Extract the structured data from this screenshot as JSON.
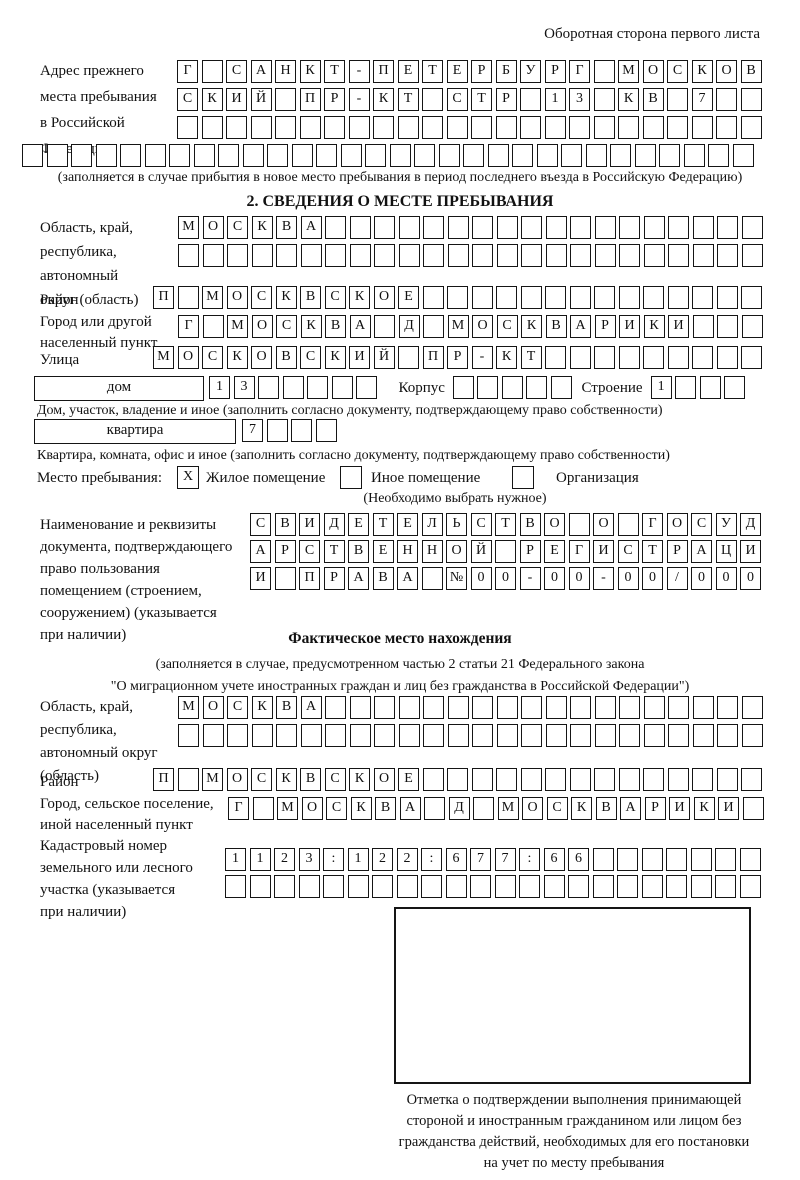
{
  "header": {
    "back_side_note": "Оборотная сторона первого листа"
  },
  "previous_address": {
    "label_lines": [
      "Адрес прежнего",
      "места пребывания",
      "в Российской",
      "Федерации"
    ],
    "rows": [
      {
        "text": "Г САНКТ-ПЕТЕРБУРГ МОСКОВ",
        "count": 24
      },
      {
        "text": "СКИЙ ПР-КТ СТР 13 КВ 7",
        "count": 24
      },
      {
        "text": "",
        "count": 24
      },
      {
        "text": "",
        "count": 30
      }
    ],
    "note": "(заполняется в случае прибытия в новое место пребывания в период последнего въезда в Российскую Федерацию)"
  },
  "section2": {
    "title": "2. СВЕДЕНИЯ О МЕСТЕ ПРЕБЫВАНИЯ",
    "region": {
      "label_lines": [
        "Область, край,",
        "республика,",
        "автономный",
        "округ (область)"
      ],
      "rows": [
        {
          "text": "МОСКВА",
          "count": 24
        },
        {
          "text": "",
          "count": 24
        }
      ]
    },
    "district": {
      "label": "Район",
      "row": {
        "text": "П МОСКВСКОЕ",
        "count": 25
      }
    },
    "city": {
      "label_lines": [
        "Город или другой",
        "населенный пункт"
      ],
      "row": {
        "text": "Г МОСКВА Д МОСКВАРИКИ",
        "count": 24
      }
    },
    "street": {
      "label": "Улица",
      "row": {
        "text": "МОСКОВСКИЙ ПР-КТ",
        "count": 25
      }
    },
    "house": {
      "label": "дом",
      "cells": {
        "text": "13",
        "count": 7
      },
      "korpus_label": "Корпус",
      "korpus_cells": {
        "text": "",
        "count": 5
      },
      "stroenie_label": "Строение",
      "stroenie_cells": {
        "text": "1",
        "count": 4
      },
      "note": "Дом, участок, владение и иное (заполнить согласно документу, подтверждающему право собственности)"
    },
    "apartment": {
      "label": "квартира",
      "cells": {
        "text": "7",
        "count": 4
      },
      "note": "Квартира, комната, офис и иное (заполнить согласно документу, подтверждающему право собственности)"
    },
    "stay_type": {
      "label": "Место пребывания:",
      "options": [
        {
          "label": "Жилое помещение",
          "mark": "X"
        },
        {
          "label": "Иное помещение",
          "mark": ""
        },
        {
          "label": "Организация",
          "mark": ""
        }
      ],
      "note": "(Необходимо выбрать нужное)"
    },
    "document": {
      "label_lines": [
        "Наименование и реквизиты",
        "документа, подтверждающего",
        "право пользования",
        "помещением (строением,",
        "сооружением) (указывается",
        "при наличии)"
      ],
      "rows": [
        {
          "text": "СВИДЕТЕЛЬСТВО О ГОСУД",
          "count": 21
        },
        {
          "text": "АРСТВЕННОЙ РЕГИСТРАЦИ",
          "count": 21
        },
        {
          "text": "И ПРАВА №00-00-00/000",
          "count": 21
        }
      ]
    }
  },
  "actual_location": {
    "title": "Фактическое место нахождения",
    "note_lines": [
      "(заполняется в случае, предусмотренном частью 2 статьи 21 Федерального закона",
      "\"О миграционном учете иностранных граждан и лиц без гражданства в Российской Федерации\")"
    ],
    "region": {
      "label_lines": [
        "Область, край,",
        "республика,",
        "автономный округ",
        "(область)"
      ],
      "rows": [
        {
          "text": "МОСКВА",
          "count": 24
        },
        {
          "text": "",
          "count": 24
        }
      ]
    },
    "district": {
      "label": "Район",
      "row": {
        "text": "П МОСКВСКОЕ",
        "count": 25
      }
    },
    "city": {
      "label_lines": [
        "Город, сельское поселение,",
        "иной населенный пункт"
      ],
      "row": {
        "text": "Г МОСКВА Д МОСКВАРИКИ",
        "count": 22
      }
    },
    "cadastral": {
      "label_lines": [
        "Кадастровый номер",
        "земельного или лесного",
        "участка (указывается",
        "при наличии)"
      ],
      "rows": [
        {
          "text": "1123:122:677:66",
          "count": 22
        },
        {
          "text": "",
          "count": 22
        }
      ]
    },
    "stamp_note_lines": [
      "Отметка о подтверждении выполнения принимающей",
      "стороной и иностранным гражданином или лицом без",
      "гражданства действий, необходимых для его постановки",
      "на учет по месту пребывания"
    ]
  }
}
